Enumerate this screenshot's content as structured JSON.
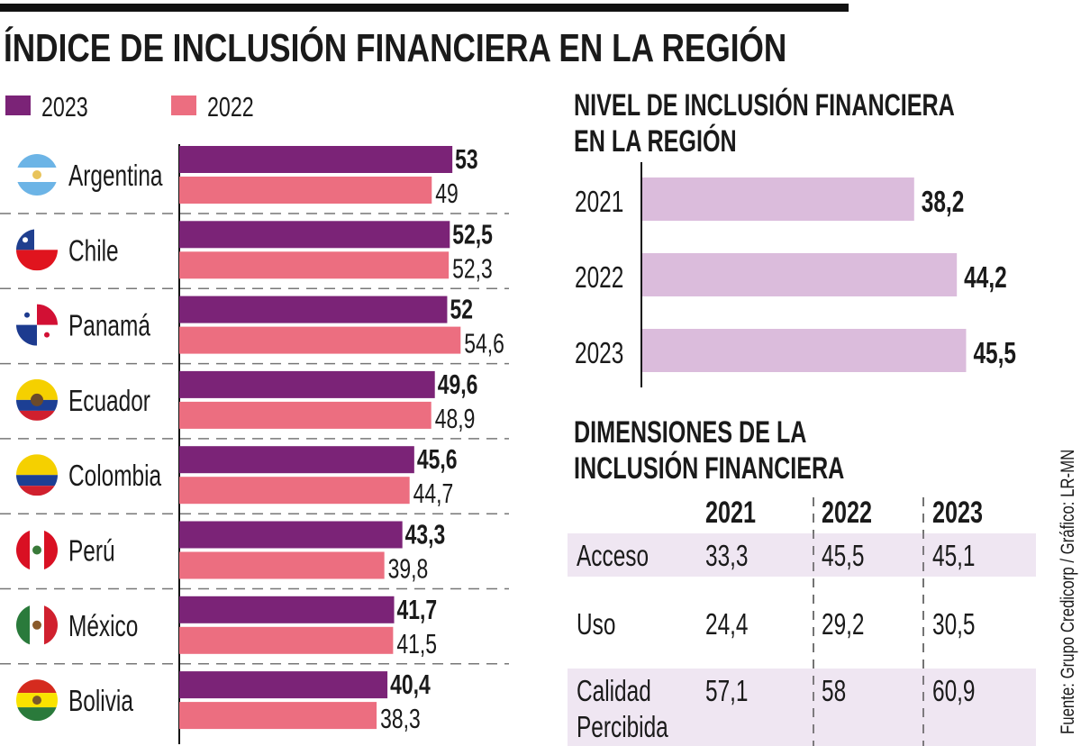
{
  "title": "ÍNDICE DE INCLUSIÓN FINANCIERA EN LA REGIÓN",
  "source": "Fuente: Grupo Credicorp / Gráfico: LR-MN",
  "colors": {
    "y2023": "#7b2377",
    "y2022": "#ec6e80",
    "nivel": "#dbbcdc",
    "table_band": "#efe6f2"
  },
  "chart_data": [
    {
      "type": "bar",
      "orientation": "horizontal",
      "legend_position": "top-left",
      "categories": [
        "Argentina",
        "Chile",
        "Panamá",
        "Ecuador",
        "Colombia",
        "Perú",
        "México",
        "Bolivia"
      ],
      "flags": [
        "argentina-flag",
        "chile-flag",
        "panama-flag",
        "ecuador-flag",
        "colombia-flag",
        "peru-flag",
        "mexico-flag",
        "bolivia-flag"
      ],
      "series": [
        {
          "name": "2023",
          "values": [
            53,
            52.5,
            52,
            49.6,
            45.6,
            43.3,
            41.7,
            40.4
          ],
          "labels": [
            "53",
            "52,5",
            "52",
            "49,6",
            "45,6",
            "43,3",
            "41,7",
            "40,4"
          ]
        },
        {
          "name": "2022",
          "values": [
            49,
            52.3,
            54.6,
            48.9,
            44.7,
            39.8,
            41.5,
            38.3
          ],
          "labels": [
            "49",
            "52,3",
            "54,6",
            "48,9",
            "44,7",
            "39,8",
            "41,5",
            "38,3"
          ]
        }
      ]
    },
    {
      "type": "bar",
      "orientation": "horizontal",
      "title": "NIVEL DE INCLUSIÓN FINANCIERA EN LA REGIÓN",
      "title_lines": [
        "NIVEL DE INCLUSIÓN FINANCIERA",
        "EN LA REGIÓN"
      ],
      "categories": [
        "2021",
        "2022",
        "2023"
      ],
      "values": [
        38.2,
        44.2,
        45.5
      ],
      "labels": [
        "38,2",
        "44,2",
        "45,5"
      ]
    },
    {
      "type": "table",
      "title": "DIMENSIONES DE LA INCLUSIÓN FINANCIERA",
      "title_lines": [
        "DIMENSIONES DE LA",
        "INCLUSIÓN FINANCIERA"
      ],
      "columns": [
        "2021",
        "2022",
        "2023"
      ],
      "rows": [
        {
          "label": [
            "Acceso"
          ],
          "values": [
            "33,3",
            "45,5",
            "45,1"
          ]
        },
        {
          "label": [
            "Uso"
          ],
          "values": [
            "24,4",
            "29,2",
            "30,5"
          ]
        },
        {
          "label": [
            "Calidad",
            "Percibida"
          ],
          "values": [
            "57,1",
            "58",
            "60,9"
          ]
        }
      ]
    }
  ]
}
